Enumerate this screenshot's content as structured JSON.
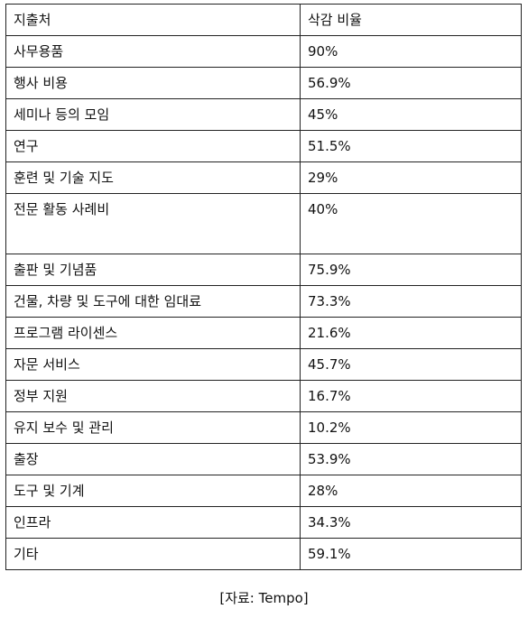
{
  "table": {
    "headers": [
      "지출처",
      "삭감 비율"
    ],
    "rows": [
      {
        "category": "사무용품",
        "rate": "90%"
      },
      {
        "category": "행사 비용",
        "rate": "56.9%"
      },
      {
        "category": "세미나 등의 모임",
        "rate": "45%"
      },
      {
        "category": "연구",
        "rate": "51.5%"
      },
      {
        "category": "훈련 및 기술 지도",
        "rate": "29%"
      },
      {
        "category": "전문 활동 사례비",
        "rate": "40%"
      },
      {
        "category": "출판 및 기념품",
        "rate": "75.9%"
      },
      {
        "category": "건물, 차량 및 도구에 대한 임대료",
        "rate": "73.3%"
      },
      {
        "category": "프로그램 라이센스",
        "rate": "21.6%"
      },
      {
        "category": "자문 서비스",
        "rate": "45.7%"
      },
      {
        "category": "정부 지원",
        "rate": "16.7%"
      },
      {
        "category": "유지 보수 및 관리",
        "rate": "10.2%"
      },
      {
        "category": "출장",
        "rate": "53.9%"
      },
      {
        "category": "도구 및 기계",
        "rate": "28%"
      },
      {
        "category": "인프라",
        "rate": "34.3%"
      },
      {
        "category": "기타",
        "rate": "59.1%"
      }
    ]
  },
  "caption": "[자료: Tempo]"
}
